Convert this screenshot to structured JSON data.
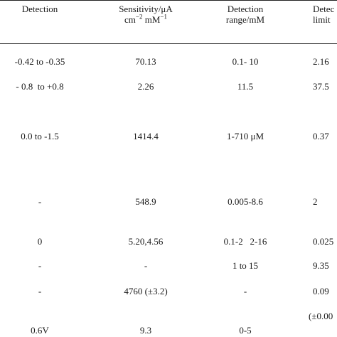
{
  "header": {
    "col_detection": "Detection",
    "col_sensitivity_line1": "Sensitivity/μA",
    "col_sensitivity_line2_a": "cm",
    "col_sensitivity_line2_sup1": "−2",
    "col_sensitivity_line2_b": " mM",
    "col_sensitivity_line2_sup2": "−1",
    "col_range_line1": "Detection",
    "col_range_line2": "range/mM",
    "col_limit_line1": "Detec",
    "col_limit_line2": "limit"
  },
  "rows": [
    {
      "detection": "-0.42 to -0.35",
      "sensitivity": "70.13",
      "range": "0.1- 10",
      "limit": "2.16"
    },
    {
      "detection": "- 0.8  to +0.8",
      "sensitivity": "2.26",
      "range": "11.5",
      "limit": "37.5"
    },
    {
      "detection": "0.0 to -1.5",
      "sensitivity": "1414.4",
      "range": "1-710 μM",
      "limit": "0.37"
    },
    {
      "detection": "-",
      "sensitivity": "548.9",
      "range": "0.005-8.6",
      "limit": "2"
    },
    {
      "detection": "0",
      "sensitivity": "5.20,4.56",
      "range": "0.1-2   2-16",
      "limit": "0.025"
    },
    {
      "detection": "-",
      "sensitivity": "-",
      "range": "1 to 15",
      "limit": "9.35"
    },
    {
      "detection": "-",
      "sensitivity": "4760 (±3.2)",
      "range": "-",
      "limit": "0.09"
    },
    {
      "detection": "0.6V",
      "sensitivity": "9.3",
      "range": "0-5",
      "limit": "",
      "limit_above": "(±0.00",
      "edge_left": "0"
    }
  ]
}
